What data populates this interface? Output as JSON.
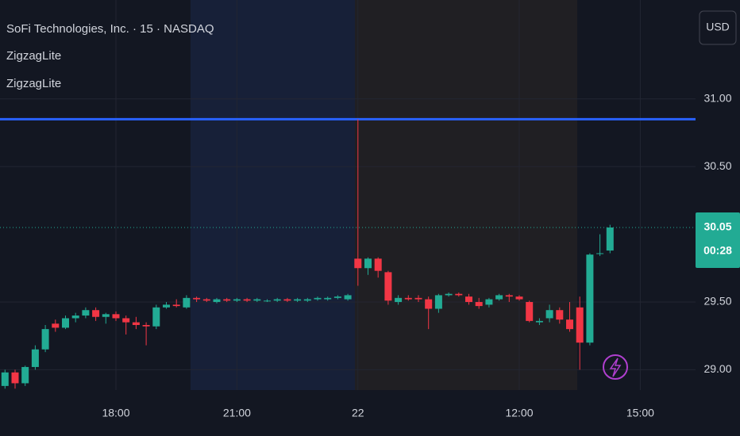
{
  "chart_data": {
    "type": "candlestick",
    "title": "SoFi Technologies, Inc. · 15 · NASDAQ",
    "indicators": [
      "ZigzagLite",
      "ZigzagLite"
    ],
    "currency": "USD",
    "countdown": "00:28",
    "up_color": "#22ab94",
    "down_color": "#f23645",
    "categories": [
      null,
      null,
      null,
      null,
      null,
      null,
      null,
      null,
      null,
      null,
      null,
      "18:00",
      null,
      null,
      null,
      null,
      null,
      null,
      null,
      null,
      null,
      null,
      null,
      "21:00",
      null,
      null,
      null,
      null,
      null,
      null,
      null,
      null,
      null,
      null,
      null,
      "22",
      null,
      null,
      null,
      null,
      null,
      null,
      null,
      null,
      null,
      null,
      null,
      null,
      null,
      null,
      null,
      "12:00",
      null,
      null,
      null,
      null,
      null,
      null,
      null,
      null,
      null,
      null,
      null,
      "15:00"
    ],
    "open": [
      28.88,
      28.98,
      28.9,
      29.02,
      29.15,
      29.34,
      29.31,
      29.38,
      29.4,
      29.44,
      29.39,
      29.41,
      29.38,
      29.35,
      29.33,
      29.32,
      29.46,
      29.48,
      29.46,
      29.53,
      29.52,
      29.5,
      29.52,
      29.51,
      29.52,
      29.51,
      29.51,
      29.51,
      29.52,
      29.51,
      29.51,
      29.52,
      29.52,
      29.53,
      29.52,
      29.82,
      29.75,
      29.82,
      29.72,
      29.5,
      29.53,
      29.53,
      29.52,
      29.45,
      29.55,
      29.56,
      29.54,
      29.5,
      29.48,
      29.52,
      29.55,
      29.54,
      29.5,
      29.35,
      29.38,
      29.44,
      29.37,
      29.46,
      29.2,
      29.86,
      29.88,
      null,
      null,
      null
    ],
    "high": [
      29.0,
      29.0,
      29.03,
      29.18,
      29.33,
      29.37,
      29.4,
      29.42,
      29.46,
      29.46,
      29.42,
      29.43,
      29.4,
      29.39,
      29.35,
      29.48,
      29.5,
      29.52,
      29.55,
      29.54,
      29.53,
      29.53,
      29.53,
      29.53,
      29.53,
      29.53,
      29.52,
      29.53,
      29.53,
      29.53,
      29.53,
      29.54,
      29.54,
      29.55,
      29.56,
      30.85,
      29.83,
      29.83,
      29.73,
      29.55,
      29.55,
      29.55,
      29.54,
      29.56,
      29.57,
      29.57,
      29.56,
      29.53,
      29.53,
      29.56,
      29.56,
      29.55,
      29.51,
      29.38,
      29.48,
      29.46,
      29.5,
      29.54,
      29.86,
      30.0,
      30.07,
      null,
      null,
      null
    ],
    "low": [
      28.86,
      28.86,
      28.88,
      29.0,
      29.13,
      29.28,
      29.3,
      29.35,
      29.38,
      29.36,
      29.34,
      29.36,
      29.26,
      29.3,
      29.18,
      29.3,
      29.45,
      29.46,
      29.45,
      29.5,
      29.5,
      29.49,
      29.5,
      29.5,
      29.5,
      29.5,
      29.5,
      29.5,
      29.5,
      29.5,
      29.5,
      29.51,
      29.51,
      29.52,
      29.51,
      29.62,
      29.7,
      29.68,
      29.48,
      29.48,
      29.51,
      29.5,
      29.3,
      29.42,
      29.54,
      29.54,
      29.48,
      29.45,
      29.46,
      29.51,
      29.5,
      29.51,
      29.35,
      29.33,
      29.35,
      29.34,
      29.28,
      29.0,
      29.18,
      29.84,
      29.86,
      null,
      null,
      null
    ],
    "close": [
      28.98,
      28.9,
      29.02,
      29.15,
      29.3,
      29.31,
      29.38,
      29.4,
      29.44,
      29.39,
      29.41,
      29.38,
      29.35,
      29.33,
      29.32,
      29.46,
      29.48,
      29.47,
      29.53,
      29.52,
      29.51,
      29.52,
      29.51,
      29.52,
      29.51,
      29.52,
      29.51,
      29.52,
      29.51,
      29.52,
      29.52,
      29.53,
      29.53,
      29.54,
      29.55,
      29.75,
      29.82,
      29.73,
      29.51,
      29.53,
      29.52,
      29.52,
      29.45,
      29.55,
      29.56,
      29.55,
      29.5,
      29.47,
      29.52,
      29.55,
      29.54,
      29.52,
      29.36,
      29.36,
      29.44,
      29.37,
      29.3,
      29.2,
      29.85,
      29.86,
      30.05,
      null,
      null,
      null
    ],
    "ylim": [
      28.85,
      31.73
    ],
    "yticks": [
      {
        "value": 29,
        "label": "29.00"
      },
      {
        "value": 29.5,
        "label": "29.50"
      },
      {
        "value": 30.5,
        "label": "30.50"
      },
      {
        "value": 31,
        "label": "31.00"
      }
    ],
    "hline": {
      "value": 30.85,
      "color": "#2962ff"
    },
    "grid": true
  }
}
